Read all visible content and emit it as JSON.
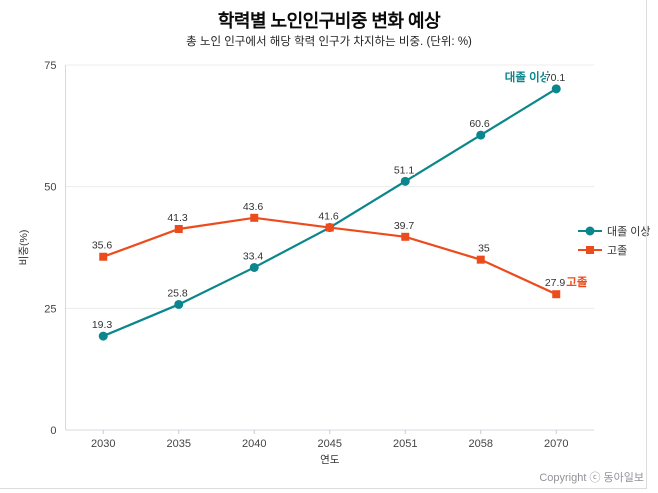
{
  "footer": {
    "copyright": "Copyright ⓒ 동아일보"
  },
  "chart_data": {
    "type": "line",
    "title": "학력별 노인인구비중 변화 예상",
    "subtitle": "총 노인 인구에서 해당 학력 인구가 차지하는 비중. (단위: %)",
    "categories": [
      "2030",
      "2035",
      "2040",
      "2045",
      "2051",
      "2058",
      "2070"
    ],
    "series": [
      {
        "name": "대졸 이상",
        "color": "#0a868c",
        "marker": "circle",
        "values": [
          19.3,
          25.8,
          33.4,
          41.6,
          51.1,
          60.6,
          70.1
        ],
        "point_labels": [
          "19.3",
          "25.8",
          "33.4",
          "41.6",
          "51.1",
          "60.6",
          "70.1"
        ],
        "end_label": "대졸 이상",
        "end_label_side": "left"
      },
      {
        "name": "고졸",
        "color": "#ec4b1c",
        "marker": "square",
        "values": [
          35.6,
          41.3,
          43.6,
          41.6,
          39.7,
          35,
          27.9
        ],
        "point_labels": [
          "35.6",
          "41.3",
          "43.6",
          "",
          "39.7",
          "35",
          "27.9"
        ],
        "end_label": "고졸",
        "end_label_side": "right"
      }
    ],
    "xlabel": "연도",
    "ylabel": "비중(%)",
    "ylim": [
      0,
      75
    ],
    "yticks": [
      0,
      25,
      50,
      75
    ],
    "grid": true,
    "legend_position": "middle-right"
  }
}
